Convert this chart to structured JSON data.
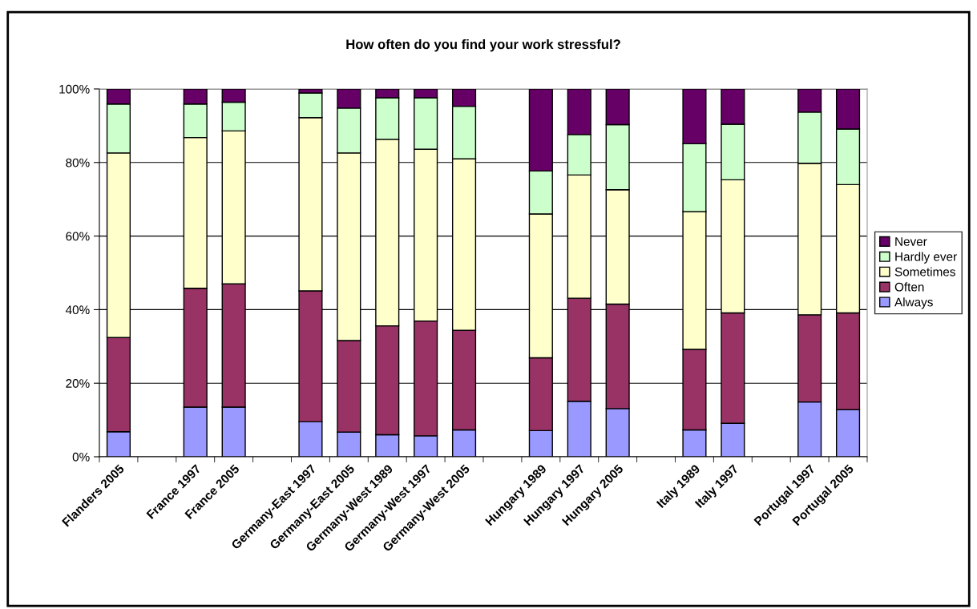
{
  "chart_data": {
    "type": "bar",
    "title": "How often do you find your work stressful?",
    "stacked": true,
    "categories": [
      "Flanders 2005",
      null,
      "France 1997",
      "France 2005",
      null,
      "Germany-East 1997",
      "Germany-East 2005",
      "Germany-West 1989",
      "Germany-West 1997",
      "Germany-West 2005",
      null,
      "Hungary 1989",
      "Hungary 1997",
      "Hungary 2005",
      null,
      "Italy 1989",
      "Italy 1997",
      null,
      "Portugal 1997",
      "Portugal 2005"
    ],
    "series": [
      {
        "name": "Always",
        "color": "#9999ff",
        "values": [
          6.8,
          null,
          13.5,
          13.5,
          null,
          9.5,
          6.7,
          6.0,
          5.7,
          7.3,
          null,
          7.1,
          15.1,
          13.1,
          null,
          7.3,
          9.1,
          null,
          14.9,
          12.8
        ]
      },
      {
        "name": "Often",
        "color": "#993366",
        "values": [
          25.6,
          null,
          32.3,
          33.5,
          null,
          35.6,
          24.9,
          29.6,
          31.2,
          27.1,
          null,
          19.8,
          28.0,
          28.4,
          null,
          21.9,
          30.0,
          null,
          23.7,
          26.3
        ]
      },
      {
        "name": "Sometimes",
        "color": "#ffffcc",
        "values": [
          50.2,
          null,
          41.0,
          41.6,
          null,
          47.1,
          51.0,
          50.7,
          46.7,
          46.6,
          null,
          39.1,
          33.5,
          31.1,
          null,
          37.4,
          36.2,
          null,
          41.2,
          34.9
        ]
      },
      {
        "name": "Hardly ever",
        "color": "#ccffcc",
        "values": [
          13.3,
          null,
          9.1,
          7.8,
          null,
          6.7,
          12.2,
          11.3,
          14.0,
          14.3,
          null,
          11.7,
          11.0,
          17.7,
          null,
          18.5,
          15.1,
          null,
          13.9,
          15.1
        ]
      },
      {
        "name": "Never",
        "color": "#660066",
        "values": [
          4.1,
          null,
          4.1,
          3.6,
          null,
          1.1,
          5.2,
          2.4,
          2.4,
          4.7,
          null,
          22.3,
          12.4,
          9.7,
          null,
          14.9,
          9.6,
          null,
          6.3,
          10.9
        ]
      }
    ],
    "ylim": [
      0,
      100
    ],
    "yticks": [
      {
        "value": 0,
        "label": "0%"
      },
      {
        "value": 20,
        "label": "20%"
      },
      {
        "value": 40,
        "label": "40%"
      },
      {
        "value": 60,
        "label": "60%"
      },
      {
        "value": 80,
        "label": "80%"
      },
      {
        "value": 100,
        "label": "100%"
      }
    ],
    "grid": "y",
    "legend": "right"
  }
}
